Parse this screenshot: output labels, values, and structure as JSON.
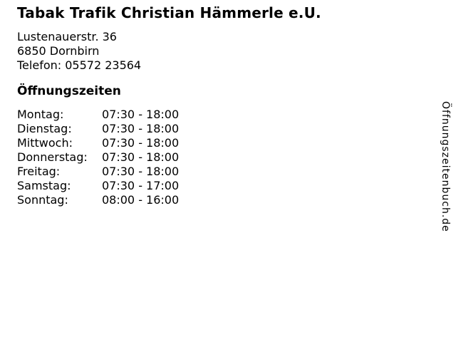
{
  "business": {
    "name": "Tabak Trafik Christian Hämmerle e.U.",
    "street": "Lustenauerstr. 36",
    "city": "6850 Dornbirn",
    "phone": "Telefon: 05572 23564"
  },
  "hours": {
    "heading": "Öffnungszeiten",
    "rows": [
      {
        "day": "Montag:",
        "time": "07:30 - 18:00"
      },
      {
        "day": "Dienstag:",
        "time": "07:30 - 18:00"
      },
      {
        "day": "Mittwoch:",
        "time": "07:30 - 18:00"
      },
      {
        "day": "Donnerstag:",
        "time": "07:30 - 18:00"
      },
      {
        "day": "Freitag:",
        "time": "07:30 - 18:00"
      },
      {
        "day": "Samstag:",
        "time": "07:30 - 17:00"
      },
      {
        "day": "Sonntag:",
        "time": "08:00 - 16:00"
      }
    ]
  },
  "watermark": {
    "text": "Öffnungszeitenbuch.de"
  },
  "colors": {
    "text": "#000000",
    "background": "#ffffff"
  }
}
